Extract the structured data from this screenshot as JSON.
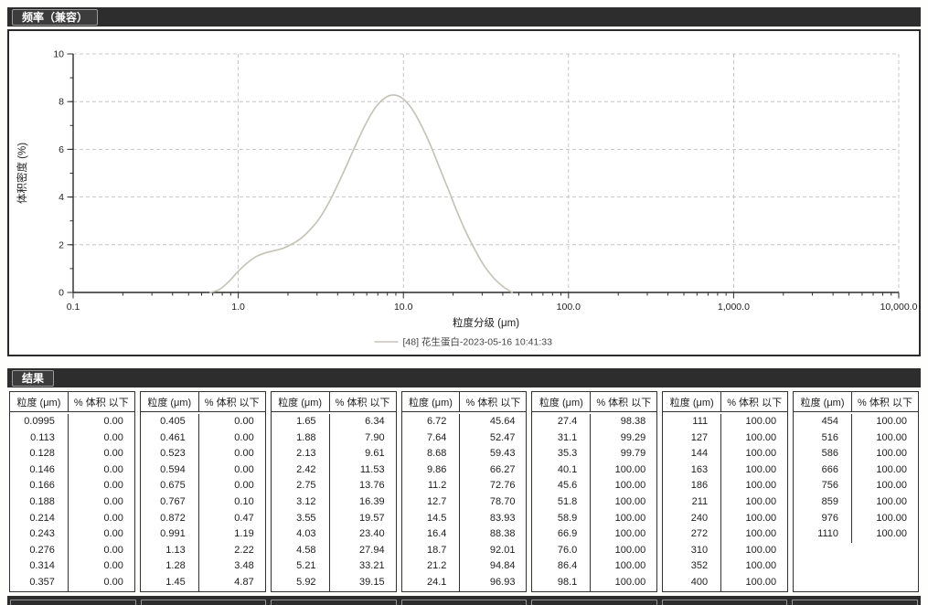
{
  "colors": {
    "bar_bg": "#2d2d2d",
    "bar_text": "#ffffff",
    "curve": "#c6c3b9",
    "grid": "#b9b9b9",
    "axis": "#2b2b2b",
    "table_border": "#333333"
  },
  "sections": {
    "frequency_title": "频率（兼容）",
    "results_title": "结果"
  },
  "chart_data": {
    "type": "line",
    "x_scale": "log",
    "xlim": [
      0.1,
      10000
    ],
    "ylim": [
      0,
      10
    ],
    "x_major": [
      0.1,
      1,
      10,
      100,
      1000,
      10000
    ],
    "x_tick_labels": [
      "0.1",
      "1.0",
      "10.0",
      "100.0",
      "1,000.0",
      "10,000.0"
    ],
    "y_major": [
      0,
      2,
      4,
      6,
      8,
      10
    ],
    "xlabel": "粒度分级 (μm)",
    "ylabel": "体积密度 (%)",
    "grid": "dashed",
    "legend_position": "bottom",
    "series": [
      {
        "name": "[48] 花生蛋白-2023-05-16 10:41:33",
        "x": [
          0.675,
          0.767,
          0.872,
          0.991,
          1.13,
          1.28,
          1.45,
          1.65,
          1.88,
          2.13,
          2.42,
          2.75,
          3.12,
          3.55,
          4.03,
          4.58,
          5.21,
          5.92,
          6.72,
          7.64,
          8.68,
          9.86,
          11.2,
          12.7,
          14.5,
          16.4,
          18.7,
          21.2,
          24.1,
          27.4,
          31.1,
          35.3,
          40.1,
          45.6
        ],
        "y": [
          0,
          0.12,
          0.44,
          0.86,
          1.23,
          1.5,
          1.65,
          1.75,
          1.86,
          2.04,
          2.29,
          2.66,
          3.13,
          3.79,
          4.56,
          5.4,
          6.27,
          7.07,
          7.72,
          8.13,
          8.28,
          8.14,
          7.72,
          7.07,
          6.22,
          5.3,
          4.32,
          3.37,
          2.49,
          1.73,
          1.08,
          0.6,
          0.25,
          0
        ]
      }
    ]
  },
  "table": {
    "col_headers": [
      "粒度 (μm)",
      "% 体积 以下"
    ],
    "groups": [
      [
        [
          "0.0995",
          "0.00"
        ],
        [
          "0.113",
          "0.00"
        ],
        [
          "0.128",
          "0.00"
        ],
        [
          "0.146",
          "0.00"
        ],
        [
          "0.166",
          "0.00"
        ],
        [
          "0.188",
          "0.00"
        ],
        [
          "0.214",
          "0.00"
        ],
        [
          "0.243",
          "0.00"
        ],
        [
          "0.276",
          "0.00"
        ],
        [
          "0.314",
          "0.00"
        ],
        [
          "0.357",
          "0.00"
        ]
      ],
      [
        [
          "0.405",
          "0.00"
        ],
        [
          "0.461",
          "0.00"
        ],
        [
          "0.523",
          "0.00"
        ],
        [
          "0.594",
          "0.00"
        ],
        [
          "0.675",
          "0.00"
        ],
        [
          "0.767",
          "0.10"
        ],
        [
          "0.872",
          "0.47"
        ],
        [
          "0.991",
          "1.19"
        ],
        [
          "1.13",
          "2.22"
        ],
        [
          "1.28",
          "3.48"
        ],
        [
          "1.45",
          "4.87"
        ]
      ],
      [
        [
          "1.65",
          "6.34"
        ],
        [
          "1.88",
          "7.90"
        ],
        [
          "2.13",
          "9.61"
        ],
        [
          "2.42",
          "11.53"
        ],
        [
          "2.75",
          "13.76"
        ],
        [
          "3.12",
          "16.39"
        ],
        [
          "3.55",
          "19.57"
        ],
        [
          "4.03",
          "23.40"
        ],
        [
          "4.58",
          "27.94"
        ],
        [
          "5.21",
          "33.21"
        ],
        [
          "5.92",
          "39.15"
        ]
      ],
      [
        [
          "6.72",
          "45.64"
        ],
        [
          "7.64",
          "52.47"
        ],
        [
          "8.68",
          "59.43"
        ],
        [
          "9.86",
          "66.27"
        ],
        [
          "11.2",
          "72.76"
        ],
        [
          "12.7",
          "78.70"
        ],
        [
          "14.5",
          "83.93"
        ],
        [
          "16.4",
          "88.38"
        ],
        [
          "18.7",
          "92.01"
        ],
        [
          "21.2",
          "94.84"
        ],
        [
          "24.1",
          "96.93"
        ]
      ],
      [
        [
          "27.4",
          "98.38"
        ],
        [
          "31.1",
          "99.29"
        ],
        [
          "35.3",
          "99.79"
        ],
        [
          "40.1",
          "100.00"
        ],
        [
          "45.6",
          "100.00"
        ],
        [
          "51.8",
          "100.00"
        ],
        [
          "58.9",
          "100.00"
        ],
        [
          "66.9",
          "100.00"
        ],
        [
          "76.0",
          "100.00"
        ],
        [
          "86.4",
          "100.00"
        ],
        [
          "98.1",
          "100.00"
        ]
      ],
      [
        [
          "111",
          "100.00"
        ],
        [
          "127",
          "100.00"
        ],
        [
          "144",
          "100.00"
        ],
        [
          "163",
          "100.00"
        ],
        [
          "186",
          "100.00"
        ],
        [
          "211",
          "100.00"
        ],
        [
          "240",
          "100.00"
        ],
        [
          "272",
          "100.00"
        ],
        [
          "310",
          "100.00"
        ],
        [
          "352",
          "100.00"
        ],
        [
          "400",
          "100.00"
        ]
      ],
      [
        [
          "454",
          "100.00"
        ],
        [
          "516",
          "100.00"
        ],
        [
          "586",
          "100.00"
        ],
        [
          "666",
          "100.00"
        ],
        [
          "756",
          "100.00"
        ],
        [
          "859",
          "100.00"
        ],
        [
          "976",
          "100.00"
        ],
        [
          "1110",
          "100.00"
        ]
      ]
    ]
  }
}
